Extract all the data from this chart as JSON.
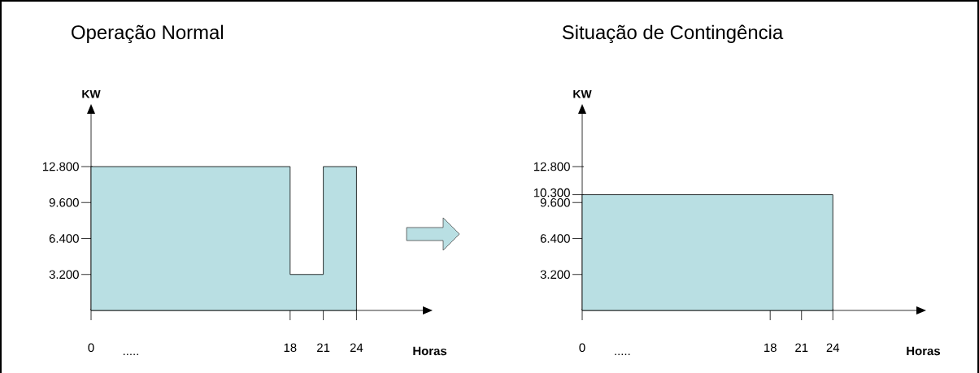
{
  "chart_data": [
    {
      "type": "area",
      "title": "Operação Normal",
      "xlabel": "Horas",
      "ylabel": "KW",
      "color": "#b9dfe3",
      "x": [
        0,
        18,
        18,
        21,
        21,
        24
      ],
      "values": [
        12800,
        12800,
        3200,
        3200,
        12800,
        12800
      ],
      "xlim": [
        0,
        30
      ],
      "ylim": [
        0,
        17500
      ],
      "xticks": [
        0,
        18,
        21,
        24
      ],
      "yticks": [
        {
          "value": 3200,
          "label": "3.200"
        },
        {
          "value": 6400,
          "label": "6.400"
        },
        {
          "value": 9600,
          "label": "9.600"
        },
        {
          "value": 12800,
          "label": "12.800"
        }
      ],
      "annotations": [
        "....."
      ]
    },
    {
      "type": "area",
      "title": "Situação de Contingência",
      "xlabel": "Horas",
      "ylabel": "KW",
      "color": "#b9dfe3",
      "x": [
        0,
        24
      ],
      "values": [
        10300,
        10300
      ],
      "xlim": [
        0,
        32
      ],
      "ylim": [
        0,
        17500
      ],
      "xticks": [
        0,
        18,
        21,
        24
      ],
      "yticks": [
        {
          "value": 3200,
          "label": "3.200"
        },
        {
          "value": 6400,
          "label": "6.400"
        },
        {
          "value": 9600,
          "label": "9.600"
        },
        {
          "value": 10300,
          "label": "10.300"
        },
        {
          "value": 12800,
          "label": "12.800"
        }
      ],
      "annotations": [
        "....."
      ]
    }
  ]
}
